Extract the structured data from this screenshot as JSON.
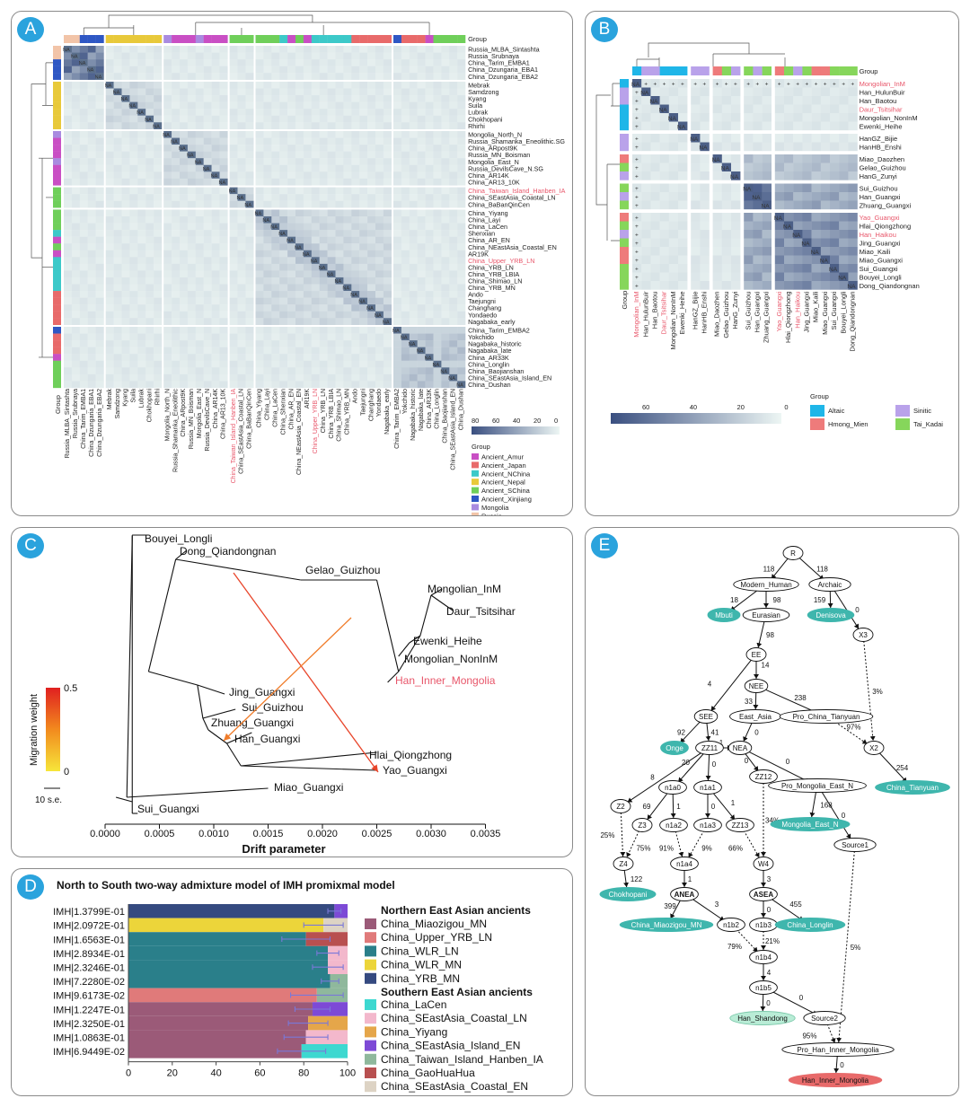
{
  "panels": {
    "a": "A",
    "b": "B",
    "c": "C",
    "d": "D",
    "e": "E"
  },
  "colors": {
    "Ancient_Amur": "#c94fc4",
    "Ancient_Japan": "#e86a6a",
    "Ancient_NChina": "#3cc9c9",
    "Ancient_Nepal": "#e8c93a",
    "Ancient_SChina": "#6fcf5a",
    "Ancient_Xinjiang": "#2e57c4",
    "Mongolia": "#a98be0",
    "Russia": "#f2c4a8",
    "Altaic": "#1fb6e8",
    "Hmong_Mien": "#ee7b7b",
    "Sinitic": "#b9a2ea",
    "Tai_Kadai": "#86d65b",
    "heat_low": "#edf6f4",
    "heat_high": "#3a4f80"
  },
  "panel_a": {
    "group_label": "Group",
    "row_labels": [
      "Russia_MLBA_Sintashta",
      "Russia_Srubnaya",
      "China_Tarim_EMBA1",
      "China_Dzungaria_EBA1",
      "China_Dzungaria_EBA2",
      "Mebrak",
      "Samdzong",
      "Kyang",
      "Suila",
      "Lubrak",
      "Chokhopani",
      "Rhirhi",
      "Mongolia_North_N",
      "Russia_Shamanka_Eneolithic.SG",
      "China_ARpost9K",
      "Russia_MN_Boisman",
      "Mongolia_East_N",
      "Russia_DevilsCave_N.SG",
      "China_AR14K",
      "China_AR13_10K",
      "China_Taiwan_Island_Hanben_IA",
      "China_SEastAsia_Coastal_LN",
      "China_BaBanQinCen",
      "China_Yiyang",
      "China_Layi",
      "China_LaCen",
      "Shenxian",
      "China_AR_EN",
      "China_NEastAsia_Coastal_EN",
      "AR19K",
      "China_Upper_YRB_LN",
      "China_YRB_LN",
      "China_YRB_LBIA",
      "China_Shimao_LN",
      "China_YRB_MN",
      "Ando",
      "Taejungni",
      "Changhang",
      "Yondaedo",
      "Nagabaka_early",
      "China_Tarim_EMBA2",
      "Yokchido",
      "Nagabaka_historic",
      "Nagabaka_late",
      "China_AR33K",
      "China_Longlin",
      "China_Baojianshan",
      "China_SEastAsia_Island_EN",
      "China_Dushan"
    ],
    "col_labels": [
      "Russia_MLBA_Sintashta",
      "Russia_Srubnaya",
      "China_Tarim_EMBA1",
      "China_Dzungaria_EBA1",
      "China_Dzungaria_EBA2",
      "Mebrak",
      "Samdzong",
      "Kyang",
      "Suila",
      "Lubrak",
      "Chokhopani",
      "Rhirhi",
      "Mongolia_North_N",
      "Russia_Shamanka_Eneolithic",
      "China_ARpost9K",
      "Russia_MN_Boisman",
      "Mongolia_East_N",
      "Russia_DevilsCave_N",
      "China_AR14K",
      "China_AR13_10K",
      "China_Taiwan_Island_Hanben_IA",
      "China_SEastAsia_Coastal_LN",
      "China_BaBanQinCen",
      "China_Yiyang",
      "China_Layi",
      "China_LaCen",
      "China_Shenxian",
      "China_AR_EN",
      "China_NEastAsia_Coastal_EN",
      "AR19K",
      "China_Upper_YRB_LN",
      "China_YRB_LN",
      "China_YRB_LBIA",
      "China_Shimao_LN",
      "China_YRB_MN",
      "Ando",
      "Taejungni",
      "Changhang",
      "Yondaedo",
      "Nagabaka_early",
      "China_Tarim_EMBA2",
      "Yokchido",
      "Nagabaka_historic",
      "Nagabaka_late",
      "China_AR33K",
      "China_Longlin",
      "China_Baojianshan",
      "China_SEastAsia_Island_EN",
      "China_Dushan"
    ],
    "highlight_rows": [
      "China_Taiwan_Island_Hanben_IA",
      "China_Upper_YRB_LN"
    ],
    "scale_ticks": [
      "80",
      "60",
      "40",
      "20",
      "0"
    ],
    "legend_title": "Group",
    "legend": [
      "Ancient_Amur",
      "Ancient_Japan",
      "Ancient_NChina",
      "Ancient_Nepal",
      "Ancient_SChina",
      "Ancient_Xinjiang",
      "Mongolia",
      "Russia"
    ],
    "na": "NA"
  },
  "panel_b": {
    "group_label": "Group",
    "row_labels": [
      "Mongolian_InM",
      "Han_HulunBuir",
      "Han_Baotou",
      "Daur_Tsitsihar",
      "Mongolian_NonInM",
      "Ewenki_Heihe",
      "HanGZ_Bijie",
      "HanHB_Enshi",
      "Miao_Daozhen",
      "Gelao_Guizhou",
      "HanG_Zunyi",
      "Sui_Guizhou",
      "Han_Guangxi",
      "Zhuang_Guangxi",
      "Yao_Guangxi",
      "Hlai_Qiongzhong",
      "Han_Haikou",
      "Jing_Guangxi",
      "Miao_Kaili",
      "Miao_Guangxi",
      "Sui_Guangxi",
      "Bouyei_Longli",
      "Dong_Qiandongnan"
    ],
    "highlight_rows": [
      "Mongolian_InM",
      "Daur_Tsitsihar",
      "Yao_Guangxi",
      "Han_Haikou"
    ],
    "scale_ticks": [
      "60",
      "40",
      "20",
      "0"
    ],
    "legend_title": "Group",
    "legend": [
      "Altaic",
      "Hmong_Mien",
      "Sinitic",
      "Tai_Kadai"
    ],
    "plus": "+",
    "na": "NA"
  },
  "panel_c": {
    "leaves": [
      "Bouyei_Longli",
      "Dong_Qiandongnan",
      "Gelao_Guizhou",
      "Mongolian_InM",
      "Daur_Tsitsihar",
      "Ewenki_Heihe",
      "Mongolian_NonInM",
      "Han_Inner_Mongolia",
      "Jing_Guangxi",
      "Sui_Guizhou",
      "Zhuang_Guangxi",
      "Han_Guangxi",
      "Hlai_Qiongzhong",
      "Yao_Guangxi",
      "Miao_Guangxi",
      "Sui_Guangxi"
    ],
    "highlight_leaf": "Han_Inner_Mongolia",
    "x_ticks": [
      "0.0000",
      "0.0005",
      "0.0010",
      "0.0015",
      "0.0020",
      "0.0025",
      "0.0030",
      "0.0035"
    ],
    "xlabel": "Drift parameter",
    "migration_label": "Migration weight",
    "migration_max": "0.5",
    "migration_min": "0",
    "scale_bar": "10 s.e."
  },
  "panel_d": {
    "title": "North to South two-way admixture model of  IMH promixmal model",
    "rows": [
      "IMH|1.3799E-01",
      "IMH|2.0972E-01",
      "IMH|1.6563E-01",
      "IMH|2.8934E-01",
      "IMH|2.3246E-01",
      "IMH|7.2280E-02",
      "IMH|9.6173E-02",
      "IMH|1.2247E-01",
      "IMH|2.3250E-01",
      "IMH|1.0863E-01",
      "IMH|6.9449E-02"
    ],
    "x_ticks": [
      "0",
      "20",
      "40",
      "60",
      "80",
      "100"
    ],
    "northern_title": "Northern East Asian ancients",
    "southern_title": "Southern East Asian ancients",
    "northern": [
      "China_Miaozigou_MN",
      "China_Upper_YRB_LN",
      "China_WLR_LN",
      "China_WLR_MN",
      "China_YRB_MN"
    ],
    "southern": [
      "China_LaCen",
      "China_SEastAsia_Coastal_LN",
      "China_Yiyang",
      "China_SEastAsia_Island_EN",
      "China_Taiwan_Island_Hanben_IA",
      "China_GaoHuaHua",
      "China_SEastAsia_Coastal_EN"
    ],
    "chart_data": {
      "type": "bar",
      "orientation": "horizontal-stacked",
      "title": "North to South two-way admixture model of  IMH promixmal model",
      "xlim": [
        0,
        100
      ],
      "categories": [
        "IMH|1.3799E-01",
        "IMH|2.0972E-01",
        "IMH|1.6563E-01",
        "IMH|2.8934E-01",
        "IMH|2.3246E-01",
        "IMH|7.2280E-02",
        "IMH|9.6173E-02",
        "IMH|1.2247E-01",
        "IMH|2.3250E-01",
        "IMH|1.0863E-01",
        "IMH|6.9449E-02"
      ],
      "bars": [
        {
          "north": "China_YRB_MN",
          "north_pct": 94,
          "south": "China_SEastAsia_Island_EN",
          "south_pct": 6,
          "err": [
            91,
            97
          ]
        },
        {
          "north": "China_WLR_MN",
          "north_pct": 89,
          "south": "China_SEastAsia_Coastal_EN",
          "south_pct": 11,
          "err": [
            80,
            98
          ]
        },
        {
          "north": "China_WLR_LN",
          "north_pct": 81,
          "south": "China_GaoHuaHua",
          "south_pct": 19,
          "err": [
            70,
            92
          ]
        },
        {
          "north": "China_WLR_LN",
          "north_pct": 91,
          "south": "China_SEastAsia_Coastal_LN",
          "south_pct": 9,
          "err": [
            86,
            96
          ]
        },
        {
          "north": "China_WLR_LN",
          "north_pct": 91,
          "south": "China_SEastAsia_Coastal_LN",
          "south_pct": 9,
          "err": [
            84,
            98
          ]
        },
        {
          "north": "China_WLR_LN",
          "north_pct": 92,
          "south": "China_Taiwan_Island_Hanben_IA",
          "south_pct": 8,
          "err": [
            88,
            96
          ]
        },
        {
          "north": "China_Upper_YRB_LN",
          "north_pct": 86,
          "south": "China_Taiwan_Island_Hanben_IA",
          "south_pct": 14,
          "err": [
            74,
            98
          ]
        },
        {
          "north": "China_Miaozigou_MN",
          "north_pct": 84,
          "south": "China_SEastAsia_Island_EN",
          "south_pct": 16,
          "err": [
            76,
            92
          ]
        },
        {
          "north": "China_Miaozigou_MN",
          "north_pct": 82,
          "south": "China_Yiyang",
          "south_pct": 18,
          "err": [
            73,
            91
          ]
        },
        {
          "north": "China_Miaozigou_MN",
          "north_pct": 81,
          "south": "China_SEastAsia_Coastal_LN",
          "south_pct": 19,
          "err": [
            71,
            91
          ]
        },
        {
          "north": "China_Miaozigou_MN",
          "north_pct": 79,
          "south": "China_LaCen",
          "south_pct": 21,
          "err": [
            68,
            90
          ]
        }
      ]
    }
  },
  "panel_e": {
    "nodes": {
      "R": "R",
      "Modern_Human": "Modern_Human",
      "Archaic": "Archaic",
      "Mbuti": "Mbuti",
      "Eurasian": "Eurasian",
      "Denisova": "Denisova",
      "EE": "EE",
      "X3": "X3",
      "NEE": "NEE",
      "SEE": "SEE",
      "East_Asia": "East_Asia",
      "Pro_China_Tianyuan": "Pro_China_Tianyuan",
      "Onge": "Onge",
      "ZZ11": "ZZ11",
      "NEA": "NEA",
      "X2": "X2",
      "China_Tianyuan": "China_Tianyuan",
      "ZZ12": "ZZ12",
      "Pro_Mongolia_East_N": "Pro_Mongolia_East_N",
      "n1a0": "n1a0",
      "n1a1": "n1a1",
      "Z2": "Z2",
      "Z3": "Z3",
      "n1a2": "n1a2",
      "n1a3": "n1a3",
      "ZZ13": "ZZ13",
      "Mongolia_East_N": "Mongolia_East_N",
      "Source1": "Source1",
      "Z4": "Z4",
      "n1a4": "n1a4",
      "W4": "W4",
      "Chokhopani": "Chokhopani",
      "ANEA": "ANEA",
      "ASEA": "ASEA",
      "China_Miaozigou_MN": "China_Miaozigou_MN",
      "n1b2": "n1b2",
      "n1b3": "n1b3",
      "China_Longlin": "China_Longlin",
      "n1b4": "n1b4",
      "n1b5": "n1b5",
      "Han_Shandong": "Han_Shandong",
      "Source2": "Source2",
      "Pro_Han_Inner_Mongolia": "Pro_Han_Inner_Mongolia",
      "Han_Inner_Mongolia": "Han_Inner_Mongolia"
    },
    "edges": {
      "R_MH": "118",
      "R_AR": "118",
      "MH_Mbuti": "18",
      "MH_Eur": "98",
      "AR_Den": "159",
      "AR_X3": "0",
      "Eur_EE": "98",
      "EE_NEE": "14",
      "EE_SEE": "4",
      "NEE_EA": "33",
      "NEE_PCT": "238",
      "X3_X2": "3%",
      "PCT_X2": "97%",
      "X2_Tian": "254",
      "SEE_Onge": "92",
      "SEE_ZZ11": "41",
      "EA_NEA": "0",
      "ZZ11_NEA": "1",
      "NEA_ZZ12": "0",
      "NEA_PME": "0",
      "ZZ11_Z2": "8",
      "ZZ11_n1a0": "20",
      "ZZ11_n1a1": "0",
      "n1a0_Z3": "69",
      "n1a0_n1a2": "1",
      "n1a1_n1a3": "0",
      "n1a1_ZZ13": "1",
      "ZZ12_W4": "34%",
      "PME_MEN": "168",
      "PME_S1": "0",
      "Z2_Z4": "25%",
      "Z3_Z4": "75%",
      "n1a2_n1a4": "91%",
      "n1a3_n1a4": "9%",
      "ZZ13_W4": "66%",
      "Z4_Cho": "122",
      "n1a4_ANEA": "1",
      "W4_ASEA": "3",
      "ANEA_Miao": "399",
      "ANEA_n1b2": "3",
      "ASEA_n1b3": "0",
      "ASEA_Long": "455",
      "n1b2_n1b4": "79%",
      "n1b3_n1b4": "21%",
      "n1b4_n1b5": "4",
      "n1b5_HS": "0",
      "n1b5_S2": "0",
      "S1_PHIM": "5%",
      "S2_PHIM": "95%",
      "PHIM_HIM": "0"
    }
  }
}
